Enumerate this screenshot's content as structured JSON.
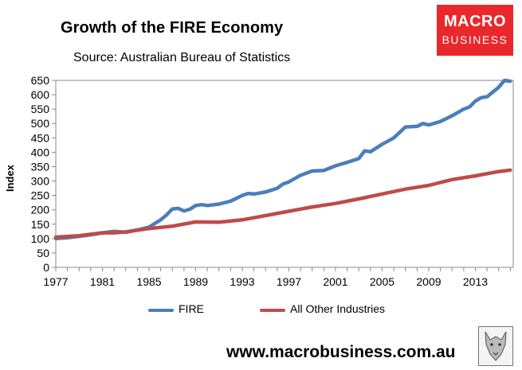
{
  "header": {
    "title": "Growth of the FIRE Economy",
    "subtitle": "Source: Australian Bureau of Statistics"
  },
  "logo": {
    "line1": "MACRO",
    "line2": "BUSINESS"
  },
  "footer": {
    "url": "www.macrobusiness.com.au"
  },
  "chart_data": {
    "type": "line",
    "title": "Growth of the FIRE Economy",
    "subtitle": "Source: Australian Bureau of Statistics",
    "xlabel": "",
    "ylabel": "Index",
    "xlim": [
      1977,
      2016.25
    ],
    "ylim": [
      0,
      650
    ],
    "yticks": [
      0,
      50,
      100,
      150,
      200,
      250,
      300,
      350,
      400,
      450,
      500,
      550,
      600,
      650
    ],
    "xticks": [
      1977,
      1981,
      1985,
      1989,
      1993,
      1997,
      2001,
      2005,
      2009,
      2013
    ],
    "grid": false,
    "legend_position": "bottom",
    "series": [
      {
        "name": "FIRE",
        "color": "#4a7ebb",
        "x": [
          1977,
          1978,
          1979,
          1980,
          1981,
          1982,
          1983,
          1984,
          1985,
          1986,
          1986.5,
          1987,
          1987.5,
          1988,
          1988.5,
          1989,
          1989.5,
          1990,
          1991,
          1992,
          1993,
          1993.5,
          1994,
          1995,
          1996,
          1996.5,
          1997,
          1998,
          1999,
          2000,
          2001,
          2002,
          2003,
          2003.5,
          2004,
          2005,
          2006,
          2007,
          2008,
          2008.5,
          2009,
          2010,
          2011,
          2012,
          2012.5,
          2013,
          2013.5,
          2014,
          2015,
          2015.5,
          2016
        ],
        "y": [
          100,
          103,
          108,
          113,
          120,
          125,
          122,
          130,
          140,
          165,
          182,
          203,
          205,
          196,
          202,
          215,
          218,
          215,
          220,
          230,
          250,
          257,
          255,
          262,
          275,
          290,
          297,
          320,
          335,
          337,
          353,
          365,
          378,
          405,
          402,
          428,
          450,
          488,
          490,
          500,
          495,
          507,
          527,
          550,
          558,
          578,
          590,
          593,
          626,
          650,
          647
        ]
      },
      {
        "name": "All Other Industries",
        "color": "#be4b48",
        "x": [
          1977,
          1979,
          1981,
          1982,
          1983,
          1985,
          1987,
          1989,
          1991,
          1993,
          1995,
          1997,
          1999,
          2001,
          2003,
          2005,
          2007,
          2009,
          2011,
          2013,
          2015,
          2016
        ],
        "y": [
          105,
          110,
          120,
          120,
          123,
          135,
          143,
          158,
          157,
          165,
          180,
          195,
          210,
          222,
          238,
          255,
          272,
          285,
          305,
          318,
          333,
          338
        ]
      }
    ]
  }
}
